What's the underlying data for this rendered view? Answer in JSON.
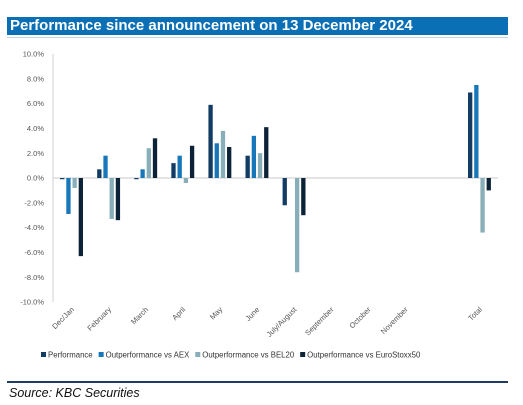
{
  "header": {
    "title": "Performance since announcement on 13 December 2024",
    "title_bg": "#0a6fb4"
  },
  "footer": {
    "source": "Source: KBC Securities"
  },
  "chart_data": {
    "type": "bar",
    "title": "",
    "xlabel": "",
    "ylabel": "",
    "ylim": [
      -10,
      10
    ],
    "yticks": [
      -10,
      -8,
      -6,
      -4,
      -2,
      0,
      2,
      4,
      6,
      8,
      10
    ],
    "ytick_labels": [
      "-10.0%",
      "-8.0%",
      "-6.0%",
      "-4.0%",
      "-2.0%",
      "0.0%",
      "2.0%",
      "4.0%",
      "6.0%",
      "8.0%",
      "10.0%"
    ],
    "grid": false,
    "legend_position": "bottom",
    "categories": [
      "Dec/Jan",
      "February",
      "March",
      "April",
      "May",
      "June",
      "July/August",
      "September",
      "October",
      "November",
      "",
      "Total"
    ],
    "series": [
      {
        "name": "Performance",
        "color": "#123c63",
        "values": [
          -0.1,
          0.7,
          -0.1,
          1.2,
          5.9,
          1.8,
          -2.2,
          null,
          null,
          null,
          null,
          6.9
        ]
      },
      {
        "name": "Outperformance vs AEX",
        "color": "#1777b9",
        "values": [
          -2.9,
          1.8,
          0.7,
          1.8,
          2.8,
          3.4,
          0.0,
          null,
          null,
          null,
          null,
          7.5
        ]
      },
      {
        "name": "Outperformance vs BEL20",
        "color": "#87aeb9",
        "values": [
          -0.8,
          -3.3,
          2.4,
          -0.4,
          3.8,
          2.0,
          -7.6,
          null,
          null,
          null,
          null,
          -4.4
        ]
      },
      {
        "name": "Outperformance vs EuroStoxx50",
        "color": "#0c2236",
        "values": [
          -6.3,
          -3.4,
          3.2,
          2.6,
          2.5,
          4.1,
          -3.0,
          null,
          null,
          null,
          null,
          -1.0
        ]
      }
    ]
  }
}
